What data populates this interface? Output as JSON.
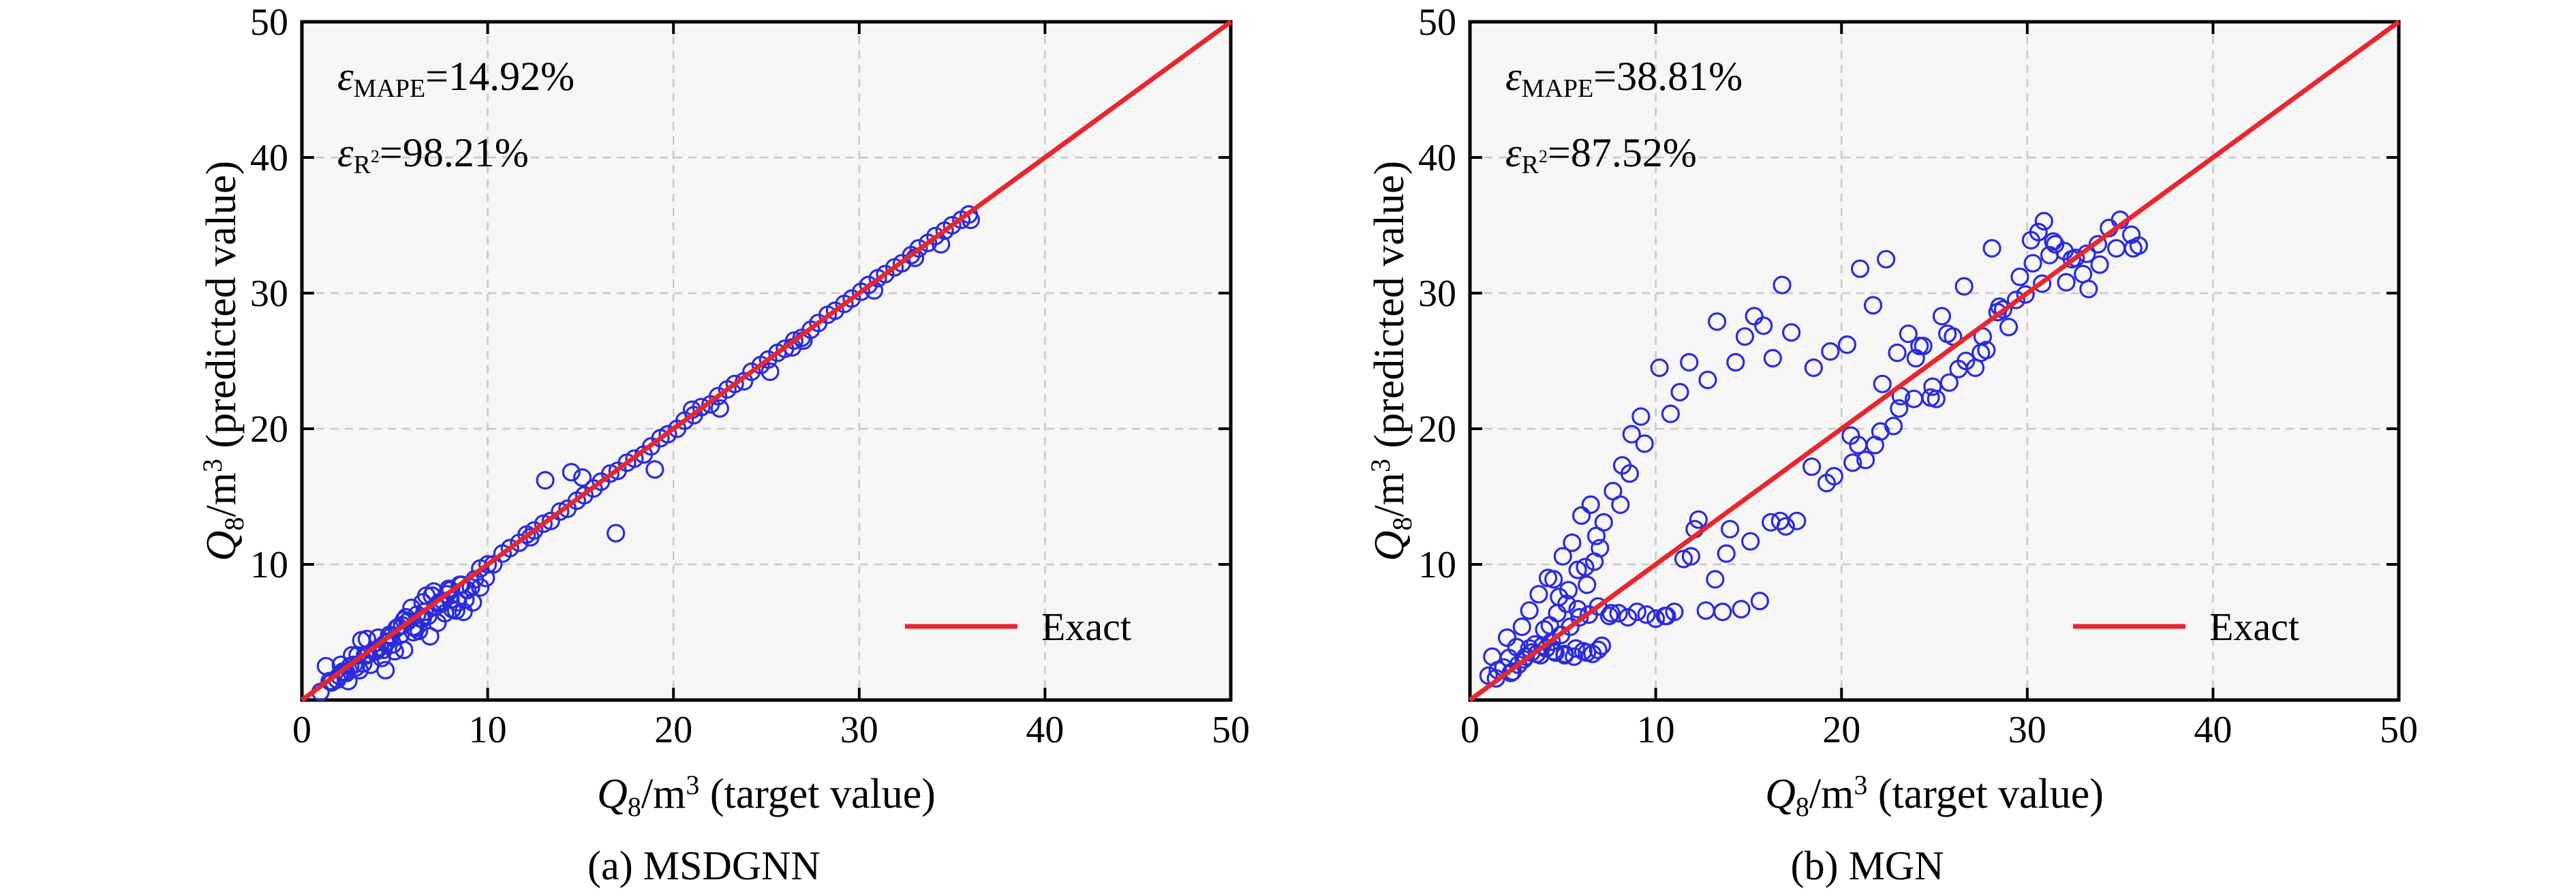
{
  "colors": {
    "points": "#2b2bdc",
    "exact_line": "#e8262f",
    "plot_bg": "#f6f6f6",
    "grid": "#c8c8c8"
  },
  "legend": {
    "exact_label": "Exact"
  },
  "chart_data": [
    {
      "type": "scatter",
      "caption": "(a) MSDGNN",
      "xlabel": "Q8/m3 (target value)",
      "ylabel": "Q8/m3 (predicted value)",
      "xlim": [
        0,
        50
      ],
      "ylim": [
        0,
        50
      ],
      "xticks": [
        "0",
        "10",
        "20",
        "30",
        "40",
        "50"
      ],
      "yticks": [
        "10",
        "20",
        "30",
        "40",
        "50"
      ],
      "grid": true,
      "legend_position": "bottom-right",
      "metrics": {
        "mape": "=14.92%",
        "r2": "=98.21%"
      },
      "series": [
        {
          "x": [
            1.0,
            1.3,
            1.6,
            1.9,
            2.1,
            2.3,
            2.5,
            2.7,
            2.9,
            3.1,
            3.3,
            3.5,
            3.7,
            3.9,
            4.1,
            4.3,
            4.5,
            4.7,
            4.9,
            5.1,
            5.3,
            5.5,
            5.7,
            5.9,
            6.1,
            6.3,
            6.5,
            6.7,
            6.9,
            7.1,
            7.3,
            7.5,
            7.7,
            7.9,
            8.1,
            8.3,
            8.5,
            8.7,
            8.9,
            9.1,
            9.3,
            9.6,
            9.9,
            2.0,
            2.4,
            2.8,
            3.2,
            3.6,
            4.0,
            4.4,
            4.8,
            5.2,
            5.6,
            6.0,
            6.4,
            6.8,
            7.2,
            7.6,
            8.0,
            8.4,
            8.8,
            9.2,
            9.6,
            10.0,
            3.0,
            3.5,
            4.0,
            4.5,
            5.0,
            5.5,
            6.0,
            6.5,
            7.0,
            7.5,
            8.0,
            1.5,
            2.2,
            2.6,
            3.4,
            4.2,
            4.6,
            5.4,
            6.2,
            6.6,
            7.4,
            7.8,
            8.6,
            10.3,
            10.8,
            11.2,
            11.7,
            12.1,
            12.5,
            13.0,
            13.4,
            13.9,
            14.3,
            14.8,
            15.2,
            15.7,
            16.1,
            16.6,
            17.0,
            17.5,
            17.9,
            18.4,
            18.8,
            19.3,
            19.7,
            13.1,
            14.5,
            15.1,
            16.9,
            12.3,
            19.0,
            20.2,
            20.6,
            21.1,
            21.5,
            22.0,
            22.4,
            22.9,
            23.3,
            23.8,
            24.2,
            24.7,
            25.1,
            25.6,
            26.0,
            26.5,
            26.9,
            27.4,
            27.8,
            28.3,
            28.7,
            29.2,
            29.6,
            30.1,
            30.5,
            31.0,
            31.4,
            31.9,
            32.3,
            32.8,
            33.2,
            33.7,
            34.1,
            34.6,
            35.0,
            35.5,
            35.9,
            22.5,
            25.2,
            26.4,
            30.8,
            33.0,
            34.4,
            36.0,
            21.0,
            27.0
          ],
          "y": [
            0.6,
            2.5,
            1.3,
            1.5,
            2.6,
            2.0,
            1.4,
            3.3,
            2.4,
            2.2,
            2.7,
            4.5,
            2.6,
            3.6,
            4.6,
            3.1,
            2.2,
            4.8,
            4.1,
            5.3,
            4.8,
            3.7,
            5.8,
            6.8,
            5.3,
            5.1,
            7.2,
            7.7,
            4.7,
            8.0,
            5.7,
            7.1,
            6.4,
            8.2,
            6.7,
            6.6,
            8.5,
            6.5,
            8.1,
            8.3,
            8.9,
            8.3,
            9.0,
            1.8,
            2.0,
            2.6,
            4.4,
            3.4,
            3.7,
            3.7,
            4.7,
            5.4,
            6.1,
            5.0,
            6.0,
            6.2,
            6.9,
            7.3,
            8.1,
            7.2,
            7.4,
            7.2,
            9.7,
            10.0,
            3.3,
            3.3,
            3.6,
            4.2,
            3.6,
            5.9,
            5.4,
            6.0,
            7.7,
            7.1,
            7.4,
            1.4,
            2.1,
            2.5,
            3.3,
            3.9,
            4.3,
            5.5,
            6.3,
            6.5,
            7.2,
            7.8,
            8.5,
            10.0,
            10.8,
            11.2,
            11.6,
            12.2,
            12.5,
            13.0,
            13.2,
            13.9,
            14.1,
            14.7,
            15.1,
            15.6,
            16.1,
            16.7,
            16.9,
            17.5,
            17.8,
            18.1,
            18.7,
            19.3,
            19.6,
            16.2,
            16.8,
            16.4,
            12.3,
            12.0,
            17.0,
            20.0,
            20.6,
            21.0,
            21.6,
            21.8,
            22.4,
            22.9,
            23.3,
            23.5,
            24.2,
            24.7,
            25.1,
            25.6,
            25.9,
            26.5,
            26.7,
            27.3,
            27.8,
            28.4,
            28.7,
            29.2,
            29.6,
            30.1,
            30.6,
            31.1,
            31.4,
            31.9,
            32.2,
            32.8,
            33.3,
            33.7,
            34.2,
            34.6,
            35.0,
            35.4,
            35.8,
            21.5,
            24.2,
            26.0,
            30.2,
            32.6,
            33.6,
            35.4,
            21.4,
            26.5
          ]
        }
      ]
    },
    {
      "type": "scatter",
      "caption": "(b) MGN",
      "xlabel": "Q8/m3 (target value)",
      "ylabel": "Q8/m3 (predicted value)",
      "xlim": [
        0,
        50
      ],
      "ylim": [
        0,
        50
      ],
      "xticks": [
        "0",
        "10",
        "20",
        "30",
        "40",
        "50"
      ],
      "yticks": [
        "10",
        "20",
        "30",
        "40",
        "50"
      ],
      "grid": true,
      "legend_position": "bottom-right",
      "metrics": {
        "mape": "=38.81%",
        "r2": "=87.52%"
      },
      "series": [
        {
          "x": [
            1.0,
            1.2,
            1.5,
            1.8,
            2.0,
            2.3,
            2.5,
            2.8,
            3.0,
            3.2,
            3.5,
            3.7,
            4.0,
            4.2,
            4.5,
            4.7,
            5.0,
            5.2,
            5.5,
            5.8,
            6.0,
            6.3,
            6.5,
            6.8,
            7.0,
            1.4,
            2.2,
            2.6,
            3.3,
            3.9,
            4.4,
            4.9,
            5.4,
            5.9,
            6.4,
            6.9,
            2.1,
            2.9,
            3.6,
            4.1,
            4.6,
            5.1,
            5.6,
            6.1,
            6.6,
            7.1,
            7.5,
            8.0,
            8.5,
            9.0,
            9.5,
            10.0,
            10.5,
            11.0,
            4.3,
            4.8,
            5.3,
            5.8,
            6.2,
            6.7,
            7.2,
            7.7,
            8.2,
            8.7,
            9.2,
            3.2,
            3.8,
            4.5,
            5.1,
            5.7,
            6.3,
            6.9,
            7.6,
            8.1,
            8.6,
            9.4,
            10.2,
            10.8,
            11.3,
            11.8,
            12.3,
            12.8,
            13.3,
            13.8,
            14.3,
            14.8,
            15.3,
            15.8,
            16.3,
            16.8,
            17.3,
            11.5,
            12.1,
            13.2,
            14.0,
            15.1,
            16.2,
            17.0,
            10.6,
            11.9,
            12.7,
            13.6,
            14.6,
            15.6,
            16.7,
            17.6,
            18.5,
            19.4,
            20.3,
            21.0,
            21.7,
            22.4,
            23.0,
            23.6,
            24.2,
            24.8,
            25.4,
            26.0,
            26.6,
            27.2,
            27.8,
            28.4,
            29.0,
            29.6,
            30.2,
            30.8,
            31.4,
            32.0,
            32.6,
            33.2,
            33.8,
            34.4,
            35.0,
            35.6,
            36.0,
            20.5,
            21.3,
            22.2,
            23.1,
            24.0,
            24.9,
            25.8,
            26.7,
            27.6,
            28.5,
            29.4,
            30.3,
            31.2,
            32.1,
            33.0,
            33.9,
            34.8,
            35.7,
            19.2,
            20.6,
            21.8,
            22.8,
            23.9,
            25.1,
            26.3,
            27.5,
            28.7,
            29.9,
            30.6,
            31.5,
            32.4,
            33.3,
            18.4,
            19.6,
            20.9,
            22.1,
            23.2,
            24.4,
            25.7,
            28.1,
            30.9
          ],
          "y": [
            1.8,
            3.2,
            2.2,
            2.4,
            4.6,
            2.1,
            3.9,
            5.4,
            3.2,
            6.6,
            4.1,
            7.8,
            5.2,
            9.0,
            8.9,
            6.4,
            10.6,
            7.1,
            11.6,
            9.6,
            13.6,
            8.5,
            14.4,
            12.1,
            11.2,
            1.6,
            2.0,
            2.6,
            3.5,
            4.0,
            4.3,
            4.8,
            5.4,
            6.1,
            6.3,
            6.9,
            3.1,
            3.0,
            3.4,
            3.8,
            3.5,
            3.3,
            3.2,
            3.6,
            3.4,
            4.0,
            6.2,
            6.4,
            6.1,
            6.5,
            6.3,
            6.0,
            6.2,
            6.5,
            5.5,
            7.6,
            8.1,
            6.7,
            9.8,
            10.2,
            13.1,
            15.4,
            17.3,
            19.6,
            20.9,
            3.8,
            3.3,
            3.6,
            3.4,
            3.8,
            3.5,
            3.7,
            6.4,
            14.4,
            16.7,
            18.9,
            24.5,
            21.1,
            22.7,
            24.9,
            13.3,
            23.6,
            27.9,
            10.8,
            24.9,
            26.8,
            28.3,
            27.6,
            25.2,
            30.6,
            27.1,
            10.4,
            12.6,
            8.9,
            12.6,
            11.7,
            13.1,
            12.8,
            6.2,
            10.6,
            6.6,
            6.5,
            6.7,
            7.3,
            13.2,
            13.2,
            24.5,
            25.7,
            26.2,
            31.8,
            29.1,
            32.5,
            25.6,
            27.0,
            26.1,
            22.3,
            28.3,
            26.8,
            30.5,
            24.5,
            25.8,
            28.6,
            27.5,
            31.2,
            33.9,
            30.7,
            33.8,
            33.1,
            32.6,
            32.9,
            33.6,
            34.8,
            35.4,
            34.3,
            33.5,
            19.5,
            17.7,
            23.3,
            21.5,
            25.2,
            23.1,
            23.4,
            25.0,
            26.8,
            29.0,
            29.5,
            32.2,
            32.8,
            30.8,
            31.4,
            32.1,
            33.3,
            33.3,
            16.0,
            17.5,
            18.8,
            20.2,
            22.2,
            22.2,
            24.4,
            25.6,
            28.8,
            29.9,
            34.5,
            33.6,
            32.5,
            30.3,
            17.2,
            16.5,
            18.8,
            19.8,
            22.4,
            26.1,
            27.0,
            33.3,
            35.3
          ]
        }
      ]
    }
  ]
}
